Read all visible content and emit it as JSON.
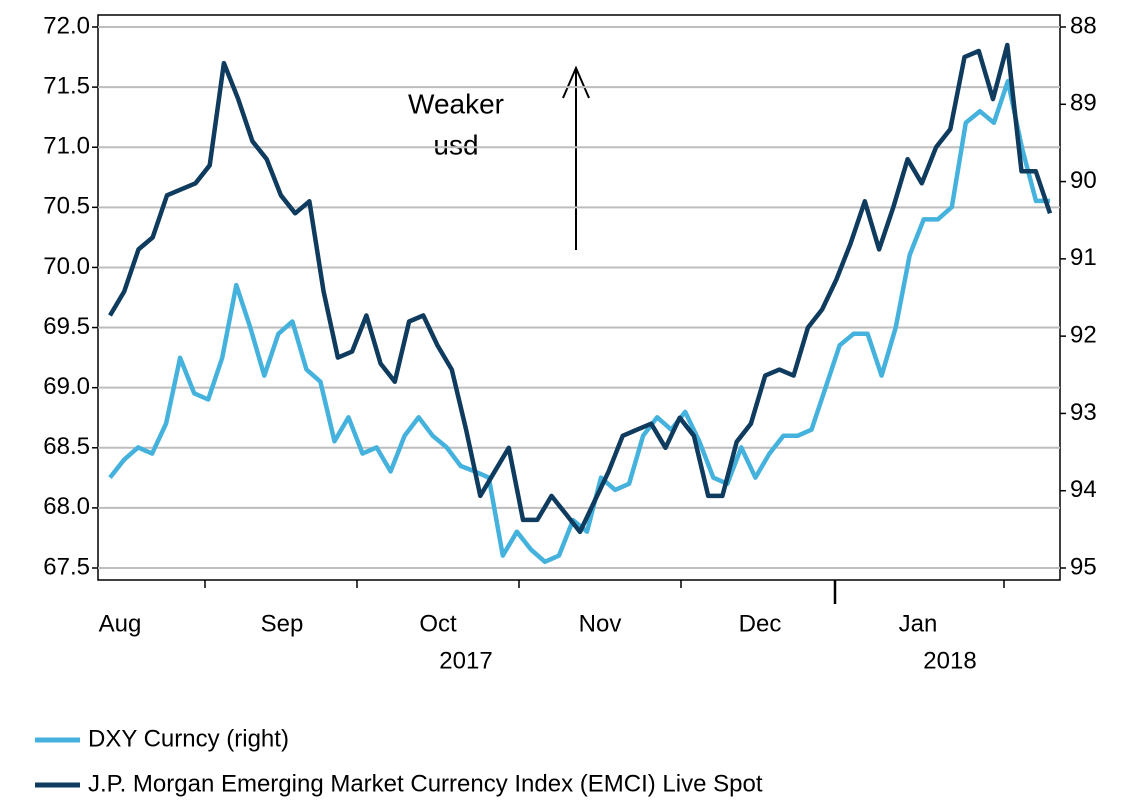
{
  "chart_data": {
    "type": "line",
    "month_labels": [
      "Aug",
      "Sep",
      "Oct",
      "Nov",
      "Dec",
      "Jan"
    ],
    "year_labels": [
      "2017",
      "2018"
    ],
    "annotation": [
      "Weaker",
      "usd"
    ],
    "ylim": [
      67.5,
      72.0
    ],
    "yticks": [
      {
        "value": 67.5,
        "label": "67.5"
      },
      {
        "value": 68,
        "label": "68.0"
      },
      {
        "value": 68.5,
        "label": "68.5"
      },
      {
        "value": 69,
        "label": "69.0"
      },
      {
        "value": 69.5,
        "label": "69.5"
      },
      {
        "value": 70,
        "label": "70.0"
      },
      {
        "value": 70.5,
        "label": "70.5"
      },
      {
        "value": 71,
        "label": "71.0"
      },
      {
        "value": 71.5,
        "label": "71.5"
      },
      {
        "value": 72,
        "label": "72.0"
      }
    ],
    "y2lim": [
      95,
      88
    ],
    "y2ticks": [
      95,
      94,
      93,
      92,
      91,
      90,
      89,
      88
    ],
    "grid": true,
    "series": [
      {
        "name": "DXY Curncy (right)",
        "color": "#45b2de",
        "axis": "y2",
        "values": [
          93.83,
          93.6,
          93.44,
          93.52,
          93.13,
          92.28,
          92.74,
          92.82,
          92.28,
          91.34,
          91.89,
          92.51,
          91.97,
          91.81,
          92.43,
          92.59,
          93.36,
          93.05,
          93.52,
          93.44,
          93.75,
          93.29,
          93.05,
          93.29,
          93.44,
          93.68,
          93.75,
          93.83,
          94.84,
          94.53,
          94.76,
          94.92,
          94.84,
          94.38,
          94.53,
          93.83,
          93.99,
          93.91,
          93.29,
          93.05,
          93.21,
          92.98,
          93.36,
          93.83,
          93.91,
          93.44,
          93.83,
          93.52,
          93.29,
          93.29,
          93.21,
          92.67,
          92.12,
          91.97,
          91.97,
          92.51,
          91.89,
          90.95,
          90.49,
          90.49,
          90.33,
          89.24,
          89.09,
          89.24,
          88.7,
          89.56,
          90.25,
          90.25
        ]
      },
      {
        "name": "J.P. Morgan Emerging Market Currency Index (EMCI) Live Spot",
        "color": "#0e3b5e",
        "values": [
          69.6,
          69.8,
          70.15,
          70.25,
          70.6,
          70.65,
          70.7,
          70.85,
          71.7,
          71.4,
          71.05,
          70.9,
          70.6,
          70.45,
          70.55,
          69.8,
          69.25,
          69.3,
          69.6,
          69.2,
          69.05,
          69.55,
          69.6,
          69.35,
          69.15,
          68.65,
          68.1,
          68.3,
          68.5,
          67.9,
          67.9,
          68.1,
          67.95,
          67.8,
          68.05,
          68.3,
          68.6,
          68.65,
          68.7,
          68.5,
          68.75,
          68.6,
          68.1,
          68.1,
          68.55,
          68.7,
          69.1,
          69.15,
          69.1,
          69.5,
          69.65,
          69.9,
          70.2,
          70.55,
          70.15,
          70.5,
          70.9,
          70.7,
          71.0,
          71.15,
          71.75,
          71.8,
          71.4,
          71.85,
          70.8,
          70.8,
          70.45
        ]
      }
    ]
  }
}
